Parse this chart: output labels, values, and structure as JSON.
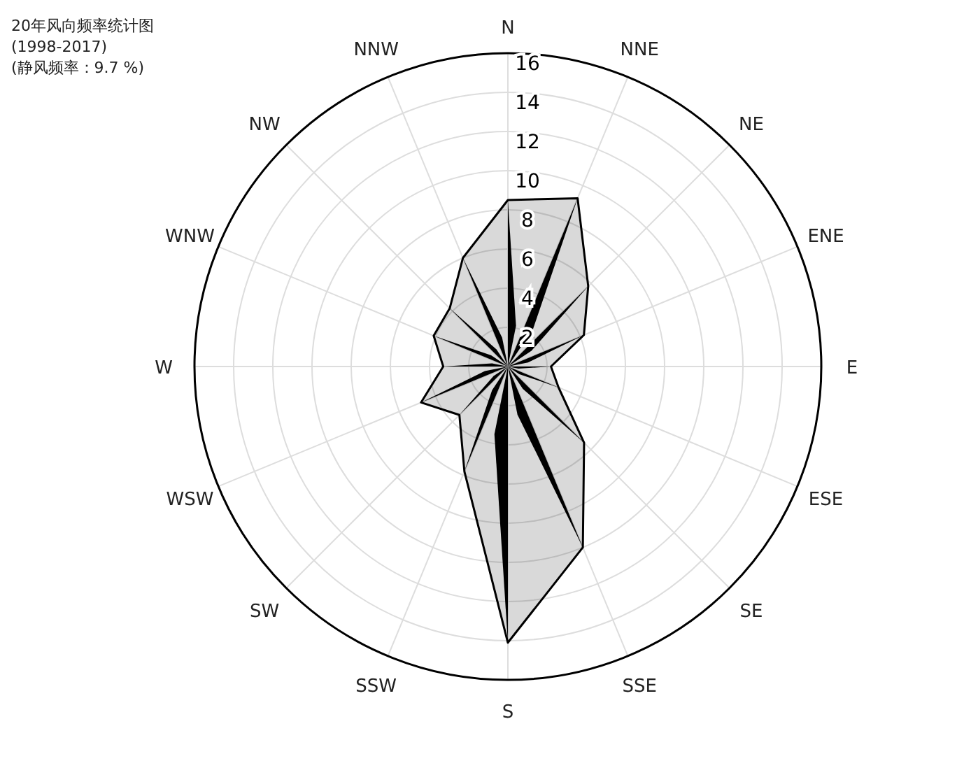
{
  "chart_data": {
    "type": "radar",
    "title": "20年风向频率统计图",
    "subtitle": "(1998-2017)",
    "annotations": [
      "(静风频率：9.7 %)"
    ],
    "categories": [
      "N",
      "NNE",
      "NE",
      "ENE",
      "E",
      "ESE",
      "SE",
      "SSE",
      "S",
      "SSW",
      "SW",
      "WSW",
      "W",
      "WNW",
      "NW",
      "NNW"
    ],
    "series": [
      {
        "color": "#000000",
        "values": [
          8.5,
          9.3,
          5.8,
          4.2,
          2.2,
          2.8,
          5.5,
          10,
          14.1,
          5.8,
          3.5,
          4.8,
          3.3,
          4.1,
          4.2,
          6.0
        ]
      }
    ],
    "ylim": [
      0,
      16
    ],
    "yticks": [
      2,
      4,
      6,
      8,
      10,
      12,
      14,
      16
    ],
    "grid": true
  }
}
